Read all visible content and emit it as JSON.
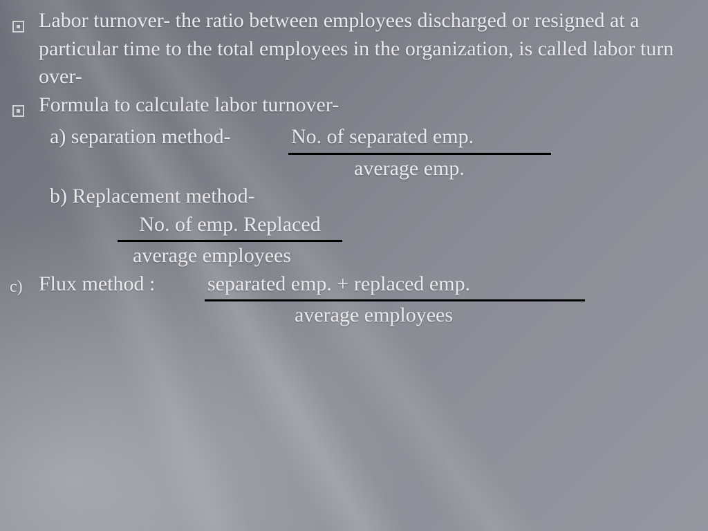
{
  "colors": {
    "text": "#e9e9ec",
    "underline": "#000000",
    "bullet_border": "#d4d4d7",
    "bg_start": "#6c6e78",
    "bg_end": "#95969f"
  },
  "typography": {
    "font_family": "Palatino Linotype, Book Antiqua, serif",
    "body_fontsize_pt": 23,
    "line_height": 1.35
  },
  "bullets": [
    {
      "marker": "box",
      "text": "Labor turnover- the ratio between employees discharged or resigned at a particular time to the total employees in the organization, is called labor turn over-"
    },
    {
      "marker": "box",
      "text": "Formula to calculate labor turnover-"
    }
  ],
  "methods": {
    "a": {
      "label": "a) separation method-",
      "numerator": "No. of separated emp.",
      "denominator": "average emp."
    },
    "b": {
      "label": "b) Replacement method-",
      "numerator": "No. of emp. Replaced",
      "denominator": "average employees"
    },
    "c": {
      "marker": "c)",
      "label": "Flux method :",
      "numerator": "separated emp. + replaced emp.",
      "denominator": "average employees"
    }
  }
}
